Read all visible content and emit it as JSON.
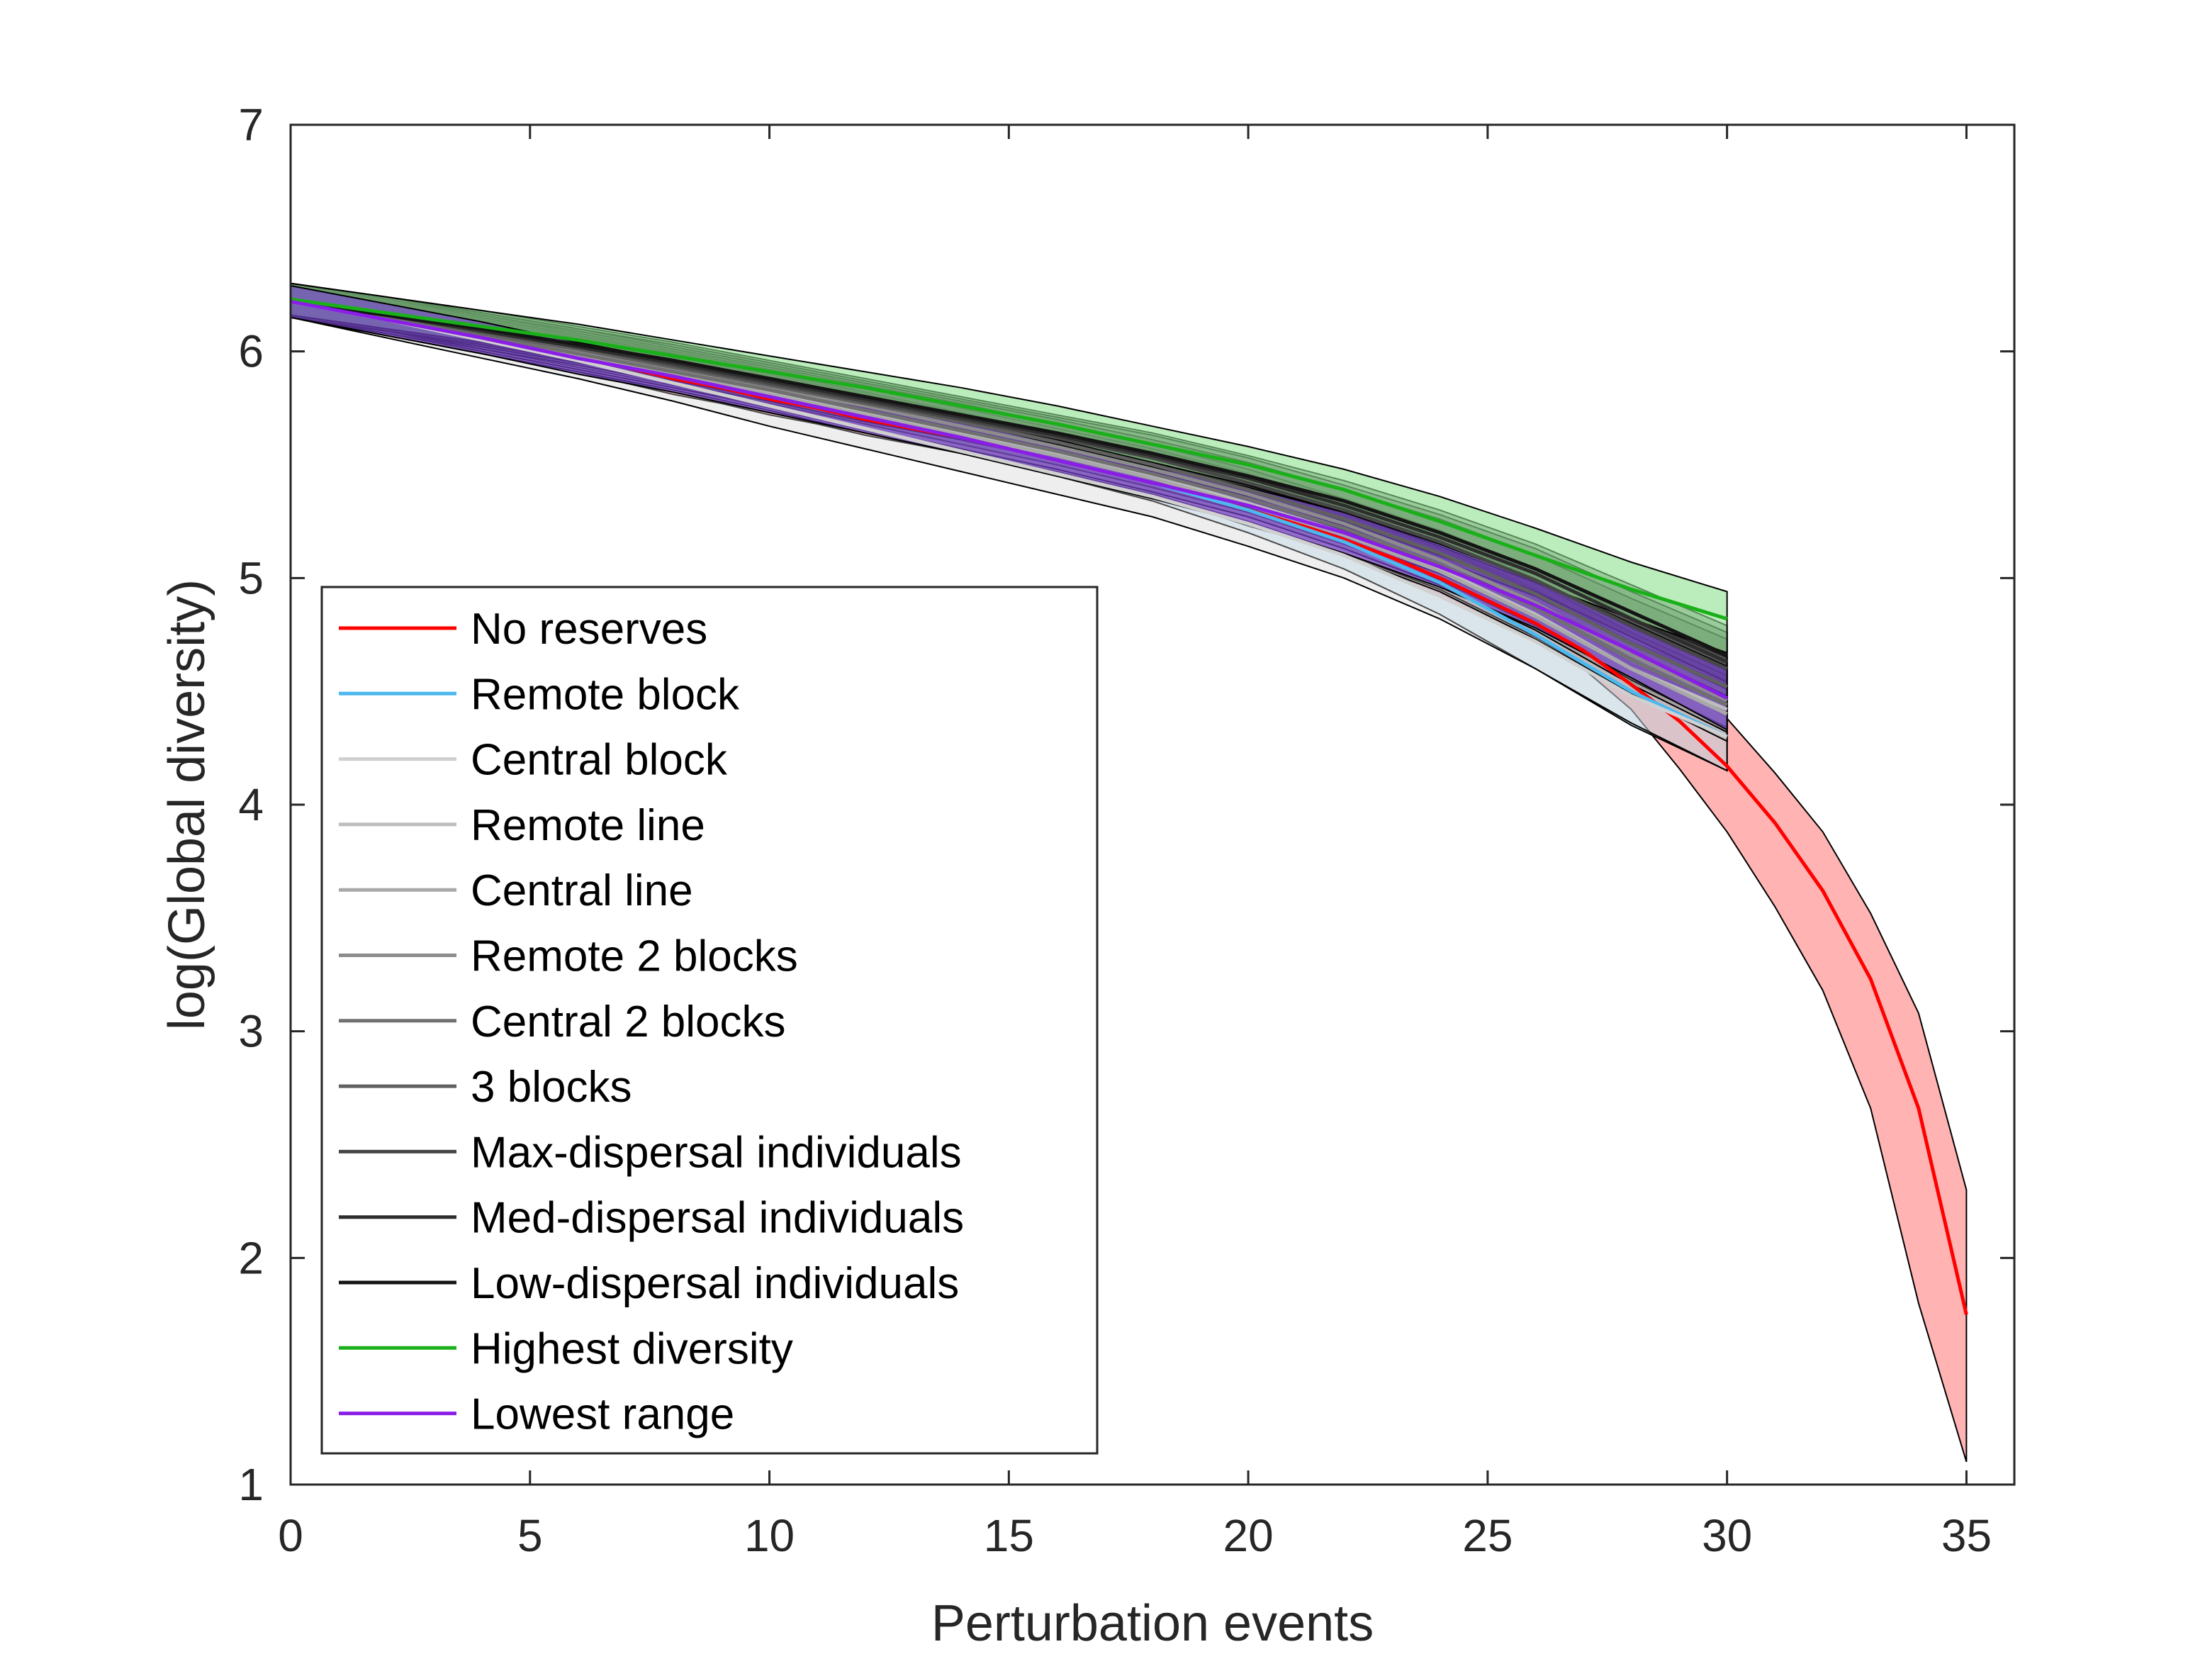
{
  "chart_data": {
    "type": "line",
    "title": "",
    "xlabel": "Perturbation events",
    "ylabel": "log(Global diversity)",
    "xlim": [
      0,
      36
    ],
    "ylim": [
      1,
      7
    ],
    "xticks": [
      0,
      5,
      10,
      15,
      20,
      25,
      30,
      35
    ],
    "yticks": [
      1,
      2,
      3,
      4,
      5,
      6,
      7
    ],
    "grid": false,
    "legend_position": "lower-left",
    "series": [
      {
        "name": "No reserves",
        "color": "#ff0000",
        "fill": "#ff9a9a",
        "x": [
          0,
          1,
          2,
          3,
          4,
          5,
          6,
          7,
          8,
          9,
          10,
          11,
          12,
          13,
          14,
          15,
          16,
          17,
          18,
          19,
          20,
          21,
          22,
          23,
          24,
          25,
          26,
          27,
          28,
          29,
          30,
          31,
          32,
          33,
          34,
          35
        ],
        "y": [
          6.22,
          6.18,
          6.14,
          6.1,
          6.06,
          6.02,
          5.98,
          5.93,
          5.88,
          5.84,
          5.79,
          5.75,
          5.7,
          5.66,
          5.62,
          5.57,
          5.52,
          5.47,
          5.42,
          5.37,
          5.3,
          5.24,
          5.17,
          5.09,
          5.0,
          4.9,
          4.8,
          4.68,
          4.53,
          4.37,
          4.17,
          3.92,
          3.62,
          3.23,
          2.66,
          1.75
        ],
        "lower": [
          6.15,
          6.11,
          6.07,
          6.03,
          5.99,
          5.95,
          5.91,
          5.86,
          5.81,
          5.77,
          5.72,
          5.68,
          5.63,
          5.59,
          5.55,
          5.5,
          5.45,
          5.4,
          5.35,
          5.3,
          5.23,
          5.17,
          5.1,
          5.02,
          4.92,
          4.82,
          4.72,
          4.6,
          4.42,
          4.16,
          3.88,
          3.55,
          3.18,
          2.66,
          1.8,
          1.1
        ],
        "upper": [
          6.3,
          6.26,
          6.22,
          6.18,
          6.14,
          6.1,
          6.06,
          6.01,
          5.96,
          5.92,
          5.87,
          5.83,
          5.78,
          5.74,
          5.7,
          5.65,
          5.6,
          5.55,
          5.5,
          5.45,
          5.38,
          5.32,
          5.25,
          5.17,
          5.08,
          4.98,
          4.88,
          4.77,
          4.65,
          4.52,
          4.38,
          4.14,
          3.88,
          3.52,
          3.08,
          2.3
        ]
      },
      {
        "name": "Remote block",
        "color": "#4db8ee",
        "fill": "#a7d6f2",
        "x": [
          0,
          2,
          4,
          6,
          8,
          10,
          12,
          14,
          16,
          18,
          20,
          22,
          24,
          26,
          28,
          30
        ],
        "y": [
          6.22,
          6.14,
          6.06,
          5.98,
          5.89,
          5.8,
          5.71,
          5.62,
          5.52,
          5.42,
          5.3,
          5.16,
          4.98,
          4.75,
          4.5,
          4.3
        ],
        "lower": [
          6.15,
          6.07,
          5.99,
          5.91,
          5.82,
          5.73,
          5.64,
          5.55,
          5.45,
          5.34,
          5.2,
          5.04,
          4.84,
          4.6,
          4.35,
          4.15
        ],
        "upper": [
          6.3,
          6.22,
          6.14,
          6.06,
          5.97,
          5.88,
          5.79,
          5.7,
          5.6,
          5.5,
          5.38,
          5.25,
          5.09,
          4.88,
          4.62,
          4.45
        ]
      },
      {
        "name": "Central block",
        "color": "#d0d0d0",
        "fill": "#cfcfcf",
        "x": [
          0,
          2,
          4,
          6,
          8,
          10,
          12,
          14,
          16,
          18,
          20,
          22,
          24,
          26,
          28,
          30
        ],
        "y": [
          6.22,
          6.14,
          6.05,
          5.96,
          5.86,
          5.76,
          5.66,
          5.56,
          5.46,
          5.36,
          5.24,
          5.1,
          4.92,
          4.72,
          4.48,
          4.3
        ],
        "lower": [
          6.15,
          6.06,
          5.97,
          5.88,
          5.78,
          5.67,
          5.57,
          5.47,
          5.37,
          5.27,
          5.14,
          5.0,
          4.82,
          4.6,
          4.36,
          4.15
        ],
        "upper": [
          6.3,
          6.22,
          6.13,
          6.04,
          5.94,
          5.85,
          5.75,
          5.65,
          5.55,
          5.45,
          5.34,
          5.2,
          5.02,
          4.82,
          4.6,
          4.45
        ]
      },
      {
        "name": "Remote line",
        "color": "#bdbdbd",
        "fill": "#bdbdbd",
        "x": [
          0,
          2,
          4,
          6,
          8,
          10,
          12,
          14,
          16,
          18,
          20,
          22,
          24,
          26,
          28,
          30
        ],
        "y": [
          6.22,
          6.15,
          6.07,
          5.99,
          5.91,
          5.82,
          5.73,
          5.64,
          5.55,
          5.45,
          5.33,
          5.2,
          5.04,
          4.84,
          4.6,
          4.42
        ],
        "lower": [
          6.15,
          6.08,
          6.0,
          5.92,
          5.84,
          5.75,
          5.65,
          5.56,
          5.47,
          5.37,
          5.25,
          5.11,
          4.95,
          4.74,
          4.49,
          4.3
        ],
        "upper": [
          6.3,
          6.23,
          6.15,
          6.07,
          5.99,
          5.9,
          5.81,
          5.72,
          5.63,
          5.54,
          5.42,
          5.29,
          5.14,
          4.95,
          4.72,
          4.55
        ]
      },
      {
        "name": "Central line",
        "color": "#a8a8a8",
        "fill": "#a8a8a8",
        "x": [
          0,
          2,
          4,
          6,
          8,
          10,
          12,
          14,
          16,
          18,
          20,
          22,
          24,
          26,
          28,
          30
        ],
        "y": [
          6.22,
          6.14,
          6.06,
          5.98,
          5.9,
          5.81,
          5.72,
          5.63,
          5.54,
          5.44,
          5.32,
          5.19,
          5.03,
          4.83,
          4.6,
          4.4
        ],
        "lower": [
          6.15,
          6.07,
          5.99,
          5.91,
          5.83,
          5.74,
          5.64,
          5.55,
          5.46,
          5.36,
          5.24,
          5.1,
          4.94,
          4.73,
          4.49,
          4.28
        ],
        "upper": [
          6.3,
          6.22,
          6.14,
          6.06,
          5.98,
          5.89,
          5.8,
          5.71,
          5.62,
          5.53,
          5.41,
          5.28,
          5.13,
          4.94,
          4.72,
          4.53
        ]
      },
      {
        "name": "Remote 2 blocks",
        "color": "#8c8c8c",
        "fill": "#8c8c8c",
        "x": [
          0,
          2,
          4,
          6,
          8,
          10,
          12,
          14,
          16,
          18,
          20,
          22,
          24,
          26,
          28,
          30
        ],
        "y": [
          6.22,
          6.15,
          6.08,
          6.0,
          5.92,
          5.84,
          5.76,
          5.67,
          5.58,
          5.48,
          5.37,
          5.24,
          5.08,
          4.89,
          4.66,
          4.46
        ],
        "lower": [
          6.15,
          6.08,
          6.01,
          5.93,
          5.85,
          5.77,
          5.68,
          5.59,
          5.5,
          5.4,
          5.29,
          5.15,
          4.99,
          4.79,
          4.55,
          4.34
        ],
        "upper": [
          6.3,
          6.23,
          6.16,
          6.08,
          6.0,
          5.92,
          5.84,
          5.75,
          5.66,
          5.57,
          5.46,
          5.33,
          5.18,
          5.0,
          4.78,
          4.59
        ]
      },
      {
        "name": "Central 2 blocks",
        "color": "#707070",
        "fill": "#707070",
        "x": [
          0,
          2,
          4,
          6,
          8,
          10,
          12,
          14,
          16,
          18,
          20,
          22,
          24,
          26,
          28,
          30
        ],
        "y": [
          6.22,
          6.15,
          6.07,
          5.99,
          5.91,
          5.83,
          5.74,
          5.65,
          5.56,
          5.46,
          5.35,
          5.22,
          5.06,
          4.87,
          4.64,
          4.44
        ],
        "lower": [
          6.15,
          6.08,
          6.0,
          5.92,
          5.84,
          5.76,
          5.66,
          5.57,
          5.48,
          5.38,
          5.27,
          5.13,
          4.97,
          4.77,
          4.53,
          4.32
        ],
        "upper": [
          6.3,
          6.23,
          6.15,
          6.07,
          5.99,
          5.91,
          5.82,
          5.73,
          5.64,
          5.55,
          5.44,
          5.31,
          5.16,
          4.98,
          4.76,
          4.57
        ]
      },
      {
        "name": "3 blocks",
        "color": "#606060",
        "fill": "#606060",
        "x": [
          0,
          2,
          4,
          6,
          8,
          10,
          12,
          14,
          16,
          18,
          20,
          22,
          24,
          26,
          28,
          30
        ],
        "y": [
          6.22,
          6.16,
          6.08,
          6.01,
          5.93,
          5.85,
          5.77,
          5.69,
          5.6,
          5.5,
          5.39,
          5.26,
          5.11,
          4.93,
          4.71,
          4.52
        ],
        "lower": [
          6.15,
          6.09,
          6.01,
          5.94,
          5.86,
          5.78,
          5.69,
          5.61,
          5.52,
          5.42,
          5.31,
          5.17,
          5.02,
          4.83,
          4.6,
          4.4
        ],
        "upper": [
          6.3,
          6.24,
          6.16,
          6.09,
          6.01,
          5.93,
          5.85,
          5.77,
          5.68,
          5.59,
          5.48,
          5.35,
          5.21,
          5.04,
          4.83,
          4.65
        ]
      },
      {
        "name": "Max-dispersal individuals",
        "color": "#474747",
        "fill": "#474747",
        "x": [
          0,
          2,
          4,
          6,
          8,
          10,
          12,
          14,
          16,
          18,
          20,
          22,
          24,
          26,
          28,
          30
        ],
        "y": [
          6.22,
          6.16,
          6.09,
          6.02,
          5.94,
          5.86,
          5.78,
          5.7,
          5.62,
          5.53,
          5.42,
          5.3,
          5.16,
          4.99,
          4.79,
          4.6
        ],
        "lower": [
          6.15,
          6.09,
          6.02,
          5.95,
          5.87,
          5.79,
          5.71,
          5.62,
          5.54,
          5.44,
          5.33,
          5.21,
          5.06,
          4.89,
          4.68,
          4.48
        ],
        "upper": [
          6.3,
          6.24,
          6.17,
          6.1,
          6.02,
          5.94,
          5.86,
          5.78,
          5.7,
          5.61,
          5.51,
          5.39,
          5.26,
          5.1,
          4.91,
          4.73
        ]
      },
      {
        "name": "Med-dispersal individuals",
        "color": "#2e2e2e",
        "fill": "#2e2e2e",
        "x": [
          0,
          2,
          4,
          6,
          8,
          10,
          12,
          14,
          16,
          18,
          20,
          22,
          24,
          26,
          28,
          30
        ],
        "y": [
          6.22,
          6.16,
          6.09,
          6.02,
          5.95,
          5.87,
          5.79,
          5.71,
          5.63,
          5.54,
          5.44,
          5.32,
          5.18,
          5.02,
          4.82,
          4.63
        ],
        "lower": [
          6.15,
          6.09,
          6.02,
          5.95,
          5.88,
          5.8,
          5.72,
          5.63,
          5.55,
          5.46,
          5.35,
          5.23,
          5.08,
          4.92,
          4.71,
          4.51
        ],
        "upper": [
          6.3,
          6.24,
          6.17,
          6.1,
          6.03,
          5.95,
          5.87,
          5.79,
          5.71,
          5.63,
          5.53,
          5.41,
          5.28,
          5.13,
          4.94,
          4.76
        ]
      },
      {
        "name": "Low-dispersal individuals",
        "color": "#141414",
        "fill": "#141414",
        "x": [
          0,
          2,
          4,
          6,
          8,
          10,
          12,
          14,
          16,
          18,
          20,
          22,
          24,
          26,
          28,
          30
        ],
        "y": [
          6.22,
          6.16,
          6.1,
          6.03,
          5.96,
          5.88,
          5.8,
          5.72,
          5.64,
          5.55,
          5.45,
          5.34,
          5.2,
          5.04,
          4.85,
          4.66
        ],
        "lower": [
          6.15,
          6.09,
          6.03,
          5.96,
          5.89,
          5.81,
          5.73,
          5.64,
          5.56,
          5.47,
          5.36,
          5.25,
          5.1,
          4.94,
          4.74,
          4.54
        ],
        "upper": [
          6.3,
          6.24,
          6.18,
          6.11,
          6.04,
          5.96,
          5.88,
          5.8,
          5.72,
          5.64,
          5.54,
          5.43,
          5.3,
          5.15,
          4.97,
          4.79
        ]
      },
      {
        "name": "Highest diversity",
        "color": "#19b019",
        "fill": "#8ee08e",
        "x": [
          0,
          2,
          4,
          6,
          8,
          10,
          12,
          14,
          16,
          18,
          20,
          22,
          24,
          26,
          28,
          30
        ],
        "y": [
          6.23,
          6.17,
          6.11,
          6.05,
          5.98,
          5.91,
          5.84,
          5.76,
          5.68,
          5.59,
          5.5,
          5.39,
          5.25,
          5.1,
          4.95,
          4.82
        ],
        "lower": [
          6.16,
          6.1,
          6.04,
          5.98,
          5.91,
          5.84,
          5.77,
          5.69,
          5.61,
          5.51,
          5.41,
          5.29,
          5.14,
          4.98,
          4.82,
          4.67
        ],
        "upper": [
          6.3,
          6.24,
          6.18,
          6.12,
          6.05,
          5.98,
          5.91,
          5.84,
          5.76,
          5.67,
          5.58,
          5.48,
          5.36,
          5.22,
          5.07,
          4.94
        ]
      },
      {
        "name": "Lowest range",
        "color": "#8a1de6",
        "fill": "#7b45d6",
        "x": [
          0,
          2,
          4,
          6,
          8,
          10,
          12,
          14,
          16,
          18,
          20,
          22,
          24,
          26,
          28,
          30
        ],
        "y": [
          6.22,
          6.14,
          6.06,
          5.97,
          5.89,
          5.8,
          5.71,
          5.62,
          5.52,
          5.42,
          5.32,
          5.2,
          5.05,
          4.88,
          4.68,
          4.47
        ],
        "lower": [
          6.15,
          6.07,
          5.99,
          5.9,
          5.82,
          5.73,
          5.64,
          5.55,
          5.45,
          5.35,
          5.24,
          5.11,
          4.96,
          4.78,
          4.56,
          4.33
        ],
        "upper": [
          6.29,
          6.21,
          6.13,
          6.04,
          5.96,
          5.87,
          5.78,
          5.69,
          5.59,
          5.49,
          5.4,
          5.29,
          5.15,
          4.99,
          4.8,
          4.61
        ]
      }
    ]
  }
}
